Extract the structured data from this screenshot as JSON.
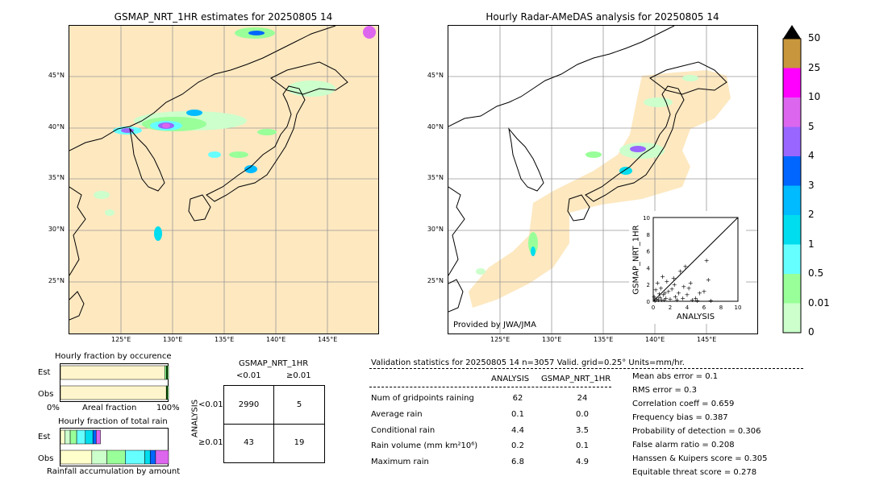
{
  "left_map": {
    "title": "GSMAP_NRT_1HR estimates for 20250805 14",
    "lat_labels": [
      "45°N",
      "40°N",
      "35°N",
      "30°N",
      "25°N"
    ],
    "lon_labels": [
      "125°E",
      "130°E",
      "135°E",
      "140°E",
      "145°E"
    ]
  },
  "right_map": {
    "title": "Hourly Radar-AMeDAS analysis for 20250805 14",
    "lat_labels": [
      "45°N",
      "40°N",
      "35°N",
      "30°N",
      "25°N"
    ],
    "lon_labels": [
      "125°E",
      "130°E",
      "135°E",
      "140°E",
      "145°E"
    ],
    "credit": "Provided by JWA/JMA"
  },
  "colorbar": {
    "labels": [
      "50",
      "25",
      "10",
      "5",
      "4",
      "3",
      "2",
      "1",
      "0.5",
      "0.01",
      "0"
    ],
    "colors": [
      "#c8963c",
      "#ff00ff",
      "#dd66ee",
      "#9966ff",
      "#0066ff",
      "#00bbff",
      "#00ddee",
      "#66ffff",
      "#99ff99",
      "#ccffcc",
      "#fde8c0"
    ]
  },
  "chart_data": [
    {
      "type": "scatter",
      "title": "",
      "xlabel": "ANALYSIS",
      "ylabel": "GSMAP_NRT_1HR",
      "xlim": [
        0,
        10
      ],
      "ylim": [
        0,
        10
      ],
      "xticks": [
        "0",
        "2",
        "4",
        "6",
        "8",
        "10"
      ],
      "yticks": [
        "0",
        "2",
        "4",
        "6",
        "8",
        "10"
      ],
      "points": [
        [
          0.2,
          0.1
        ],
        [
          0.4,
          0.3
        ],
        [
          0.6,
          0.2
        ],
        [
          0.8,
          0.5
        ],
        [
          1.0,
          0.2
        ],
        [
          1.2,
          0.8
        ],
        [
          1.5,
          0.4
        ],
        [
          1.8,
          1.2
        ],
        [
          2.0,
          0.3
        ],
        [
          2.2,
          1.5
        ],
        [
          2.5,
          2.0
        ],
        [
          2.6,
          0.6
        ],
        [
          3.0,
          1.0
        ],
        [
          3.2,
          3.6
        ],
        [
          3.5,
          0.4
        ],
        [
          3.8,
          4.2
        ],
        [
          4.2,
          1.6
        ],
        [
          4.4,
          2.2
        ],
        [
          5.0,
          0.4
        ],
        [
          5.5,
          1.0
        ],
        [
          6.0,
          1.2
        ],
        [
          6.3,
          4.9
        ],
        [
          6.5,
          2.6
        ],
        [
          6.8,
          0.1
        ],
        [
          0.3,
          1.4
        ],
        [
          0.5,
          2.2
        ],
        [
          0.9,
          1.6
        ],
        [
          1.1,
          3.0
        ],
        [
          1.6,
          2.4
        ],
        [
          2.4,
          2.8
        ],
        [
          3.6,
          1.8
        ],
        [
          4.0,
          0.8
        ],
        [
          0.1,
          0.6
        ],
        [
          0.7,
          0.9
        ],
        [
          1.3,
          0.2
        ],
        [
          2.8,
          0.2
        ],
        [
          4.6,
          0.2
        ],
        [
          5.2,
          0.1
        ],
        [
          0.2,
          0.3
        ],
        [
          1.4,
          1.0
        ]
      ]
    },
    {
      "type": "bar",
      "title": "Hourly fraction by occurence",
      "xlabel": "Areal fraction",
      "xticks": [
        "0%",
        "100%"
      ],
      "categories": [
        "Est",
        "Obs"
      ],
      "series": [
        {
          "values": [
            0.965,
            0.979
          ]
        },
        {
          "values": [
            0.035,
            0.021
          ]
        }
      ]
    },
    {
      "type": "bar",
      "title": "Hourly fraction of total rain",
      "xlabel": "Rainfall accumulation by amount",
      "categories": [
        "Est",
        "Obs"
      ],
      "series": [
        {
          "values": [
            0.04,
            0.29
          ]
        },
        {
          "values": [
            0.05,
            0.14
          ]
        },
        {
          "values": [
            0.06,
            0.17
          ]
        },
        {
          "values": [
            0.08,
            0.18
          ]
        },
        {
          "values": [
            0.07,
            0.05
          ]
        },
        {
          "values": [
            0.03,
            0.05
          ]
        },
        {
          "values": [
            0.04,
            0.12
          ]
        }
      ]
    }
  ],
  "contingency": {
    "title": "GSMAP_NRT_1HR",
    "col_headers": [
      "<0.01",
      "≥0.01"
    ],
    "row_axis_label": "ANALYSIS",
    "row_headers": [
      "<0.01",
      "≥0.01"
    ],
    "cells": [
      [
        "2990",
        "5"
      ],
      [
        "43",
        "19"
      ]
    ]
  },
  "validation": {
    "header": "Validation statistics for 20250805 14  n=3057 Valid. grid=0.25° Units=mm/hr.",
    "col_headers": [
      "ANALYSIS",
      "GSMAP_NRT_1HR"
    ],
    "rows": [
      {
        "label": "Num of gridpoints raining",
        "analysis": "62",
        "gsmap": "24"
      },
      {
        "label": "Average rain",
        "analysis": "0.1",
        "gsmap": "0.0"
      },
      {
        "label": "Conditional rain",
        "analysis": "4.4",
        "gsmap": "3.5"
      },
      {
        "label": "Rain volume (mm km²10⁶)",
        "analysis": "0.2",
        "gsmap": "0.1"
      },
      {
        "label": "Maximum rain",
        "analysis": "6.8",
        "gsmap": "4.9"
      }
    ],
    "scores": [
      "Mean abs error =    0.1",
      "RMS error =    0.3",
      "Correlation coeff =  0.659",
      "Frequency bias =  0.387",
      "Probability of detection =  0.306",
      "False alarm ratio =  0.208",
      "Hanssen & Kuipers score =  0.305",
      "Equitable threat score =  0.278"
    ]
  }
}
